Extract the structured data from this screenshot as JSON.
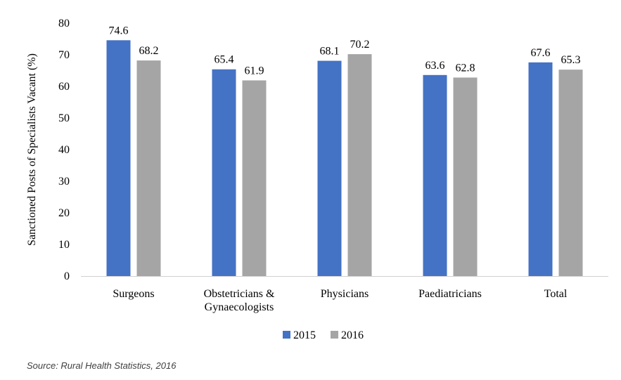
{
  "chart_data": {
    "type": "bar",
    "ylabel": "Sanctioned Posts of Specialists Vacant (%)",
    "xlabel": "",
    "ylim": [
      0,
      80
    ],
    "yticks": [
      0,
      10,
      20,
      30,
      40,
      50,
      60,
      70,
      80
    ],
    "grid": false,
    "legend_position": "bottom",
    "categories": [
      [
        "Surgeons"
      ],
      [
        "Obstetricians &",
        "Gynaecologists"
      ],
      [
        "Physicians"
      ],
      [
        "Paediatricians"
      ],
      [
        "Total"
      ]
    ],
    "series": [
      {
        "name": "2015",
        "color": "#4472C4",
        "values": [
          74.6,
          65.4,
          68.1,
          63.6,
          67.6
        ],
        "labels": [
          "74.6",
          "65.4",
          "68.1",
          "63.6",
          "67.6"
        ]
      },
      {
        "name": "2016",
        "color": "#A5A5A5",
        "values": [
          68.2,
          61.9,
          70.2,
          62.8,
          65.3
        ],
        "labels": [
          "68.2",
          "61.9",
          "70.2",
          "62.8",
          "65.3"
        ]
      }
    ]
  },
  "source": "Source: Rural Health Statistics, 2016"
}
